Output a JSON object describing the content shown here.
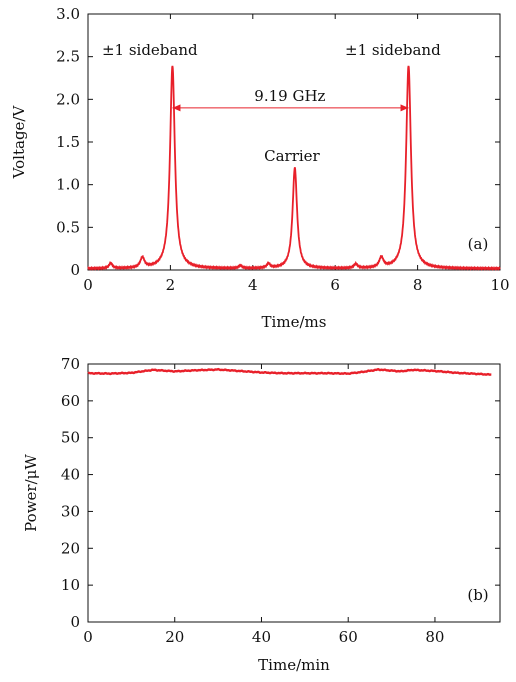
{
  "chart_data": [
    {
      "type": "line",
      "panel_label": "(a)",
      "xlabel": "Time/ms",
      "ylabel": "Voltage/V",
      "xlim": [
        0,
        10
      ],
      "ylim": [
        0,
        3.0
      ],
      "xticks": [
        0,
        2,
        4,
        6,
        8,
        10
      ],
      "xtick_labels": [
        "0",
        "2",
        "4",
        "6",
        "8",
        "10"
      ],
      "yticks": [
        0,
        0.5,
        1.0,
        1.5,
        2.0,
        2.5,
        3.0
      ],
      "ytick_labels": [
        "0",
        "0.5",
        "1.0",
        "1.5",
        "2.0",
        "2.5",
        "3.0"
      ],
      "line_color": "#e8202a",
      "series": [
        {
          "peaks": [
            {
              "x": 0.55,
              "height": 0.06,
              "width": 0.05
            },
            {
              "x": 1.32,
              "height": 0.12,
              "width": 0.06
            },
            {
              "x": 2.05,
              "height": 2.38,
              "width": 0.07
            },
            {
              "x": 3.7,
              "height": 0.03,
              "width": 0.05
            },
            {
              "x": 4.38,
              "height": 0.05,
              "width": 0.05
            },
            {
              "x": 5.02,
              "height": 1.18,
              "width": 0.065
            },
            {
              "x": 6.5,
              "height": 0.05,
              "width": 0.05
            },
            {
              "x": 7.12,
              "height": 0.12,
              "width": 0.06
            },
            {
              "x": 7.78,
              "height": 2.38,
              "width": 0.07
            }
          ],
          "baseline": 0.015
        }
      ],
      "annotations": [
        {
          "text": "±1 sideband",
          "x": 1.5,
          "y": 2.52
        },
        {
          "text": "±1 sideband",
          "x": 7.4,
          "y": 2.52
        },
        {
          "text": "Carrier",
          "x": 4.95,
          "y": 1.28
        },
        {
          "text": "9.19 GHz",
          "x": 4.9,
          "y": 1.98
        }
      ],
      "arrow": {
        "x1": 2.05,
        "x2": 7.78,
        "y": 1.9
      }
    },
    {
      "type": "line",
      "panel_label": "(b)",
      "xlabel": "Time/min",
      "ylabel": "Power/μW",
      "xlim": [
        0,
        95
      ],
      "ylim": [
        0,
        70
      ],
      "xticks": [
        0,
        20,
        40,
        60,
        80
      ],
      "xtick_labels": [
        "0",
        "20",
        "40",
        "60",
        "80"
      ],
      "yticks": [
        0,
        10,
        20,
        30,
        40,
        50,
        60,
        70
      ],
      "ytick_labels": [
        "0",
        "10",
        "20",
        "30",
        "40",
        "50",
        "60",
        "70"
      ],
      "line_color": "#e8202a",
      "series": [
        {
          "x": [
            0,
            5,
            10,
            15,
            20,
            25,
            30,
            35,
            40,
            45,
            50,
            55,
            60,
            63,
            67,
            72,
            75,
            80,
            85,
            90,
            93
          ],
          "y": [
            67.5,
            67.4,
            67.6,
            68.4,
            68.0,
            68.3,
            68.5,
            68.1,
            67.7,
            67.5,
            67.5,
            67.5,
            67.4,
            67.8,
            68.5,
            68.0,
            68.4,
            68.1,
            67.6,
            67.3,
            67.1
          ]
        }
      ]
    }
  ]
}
